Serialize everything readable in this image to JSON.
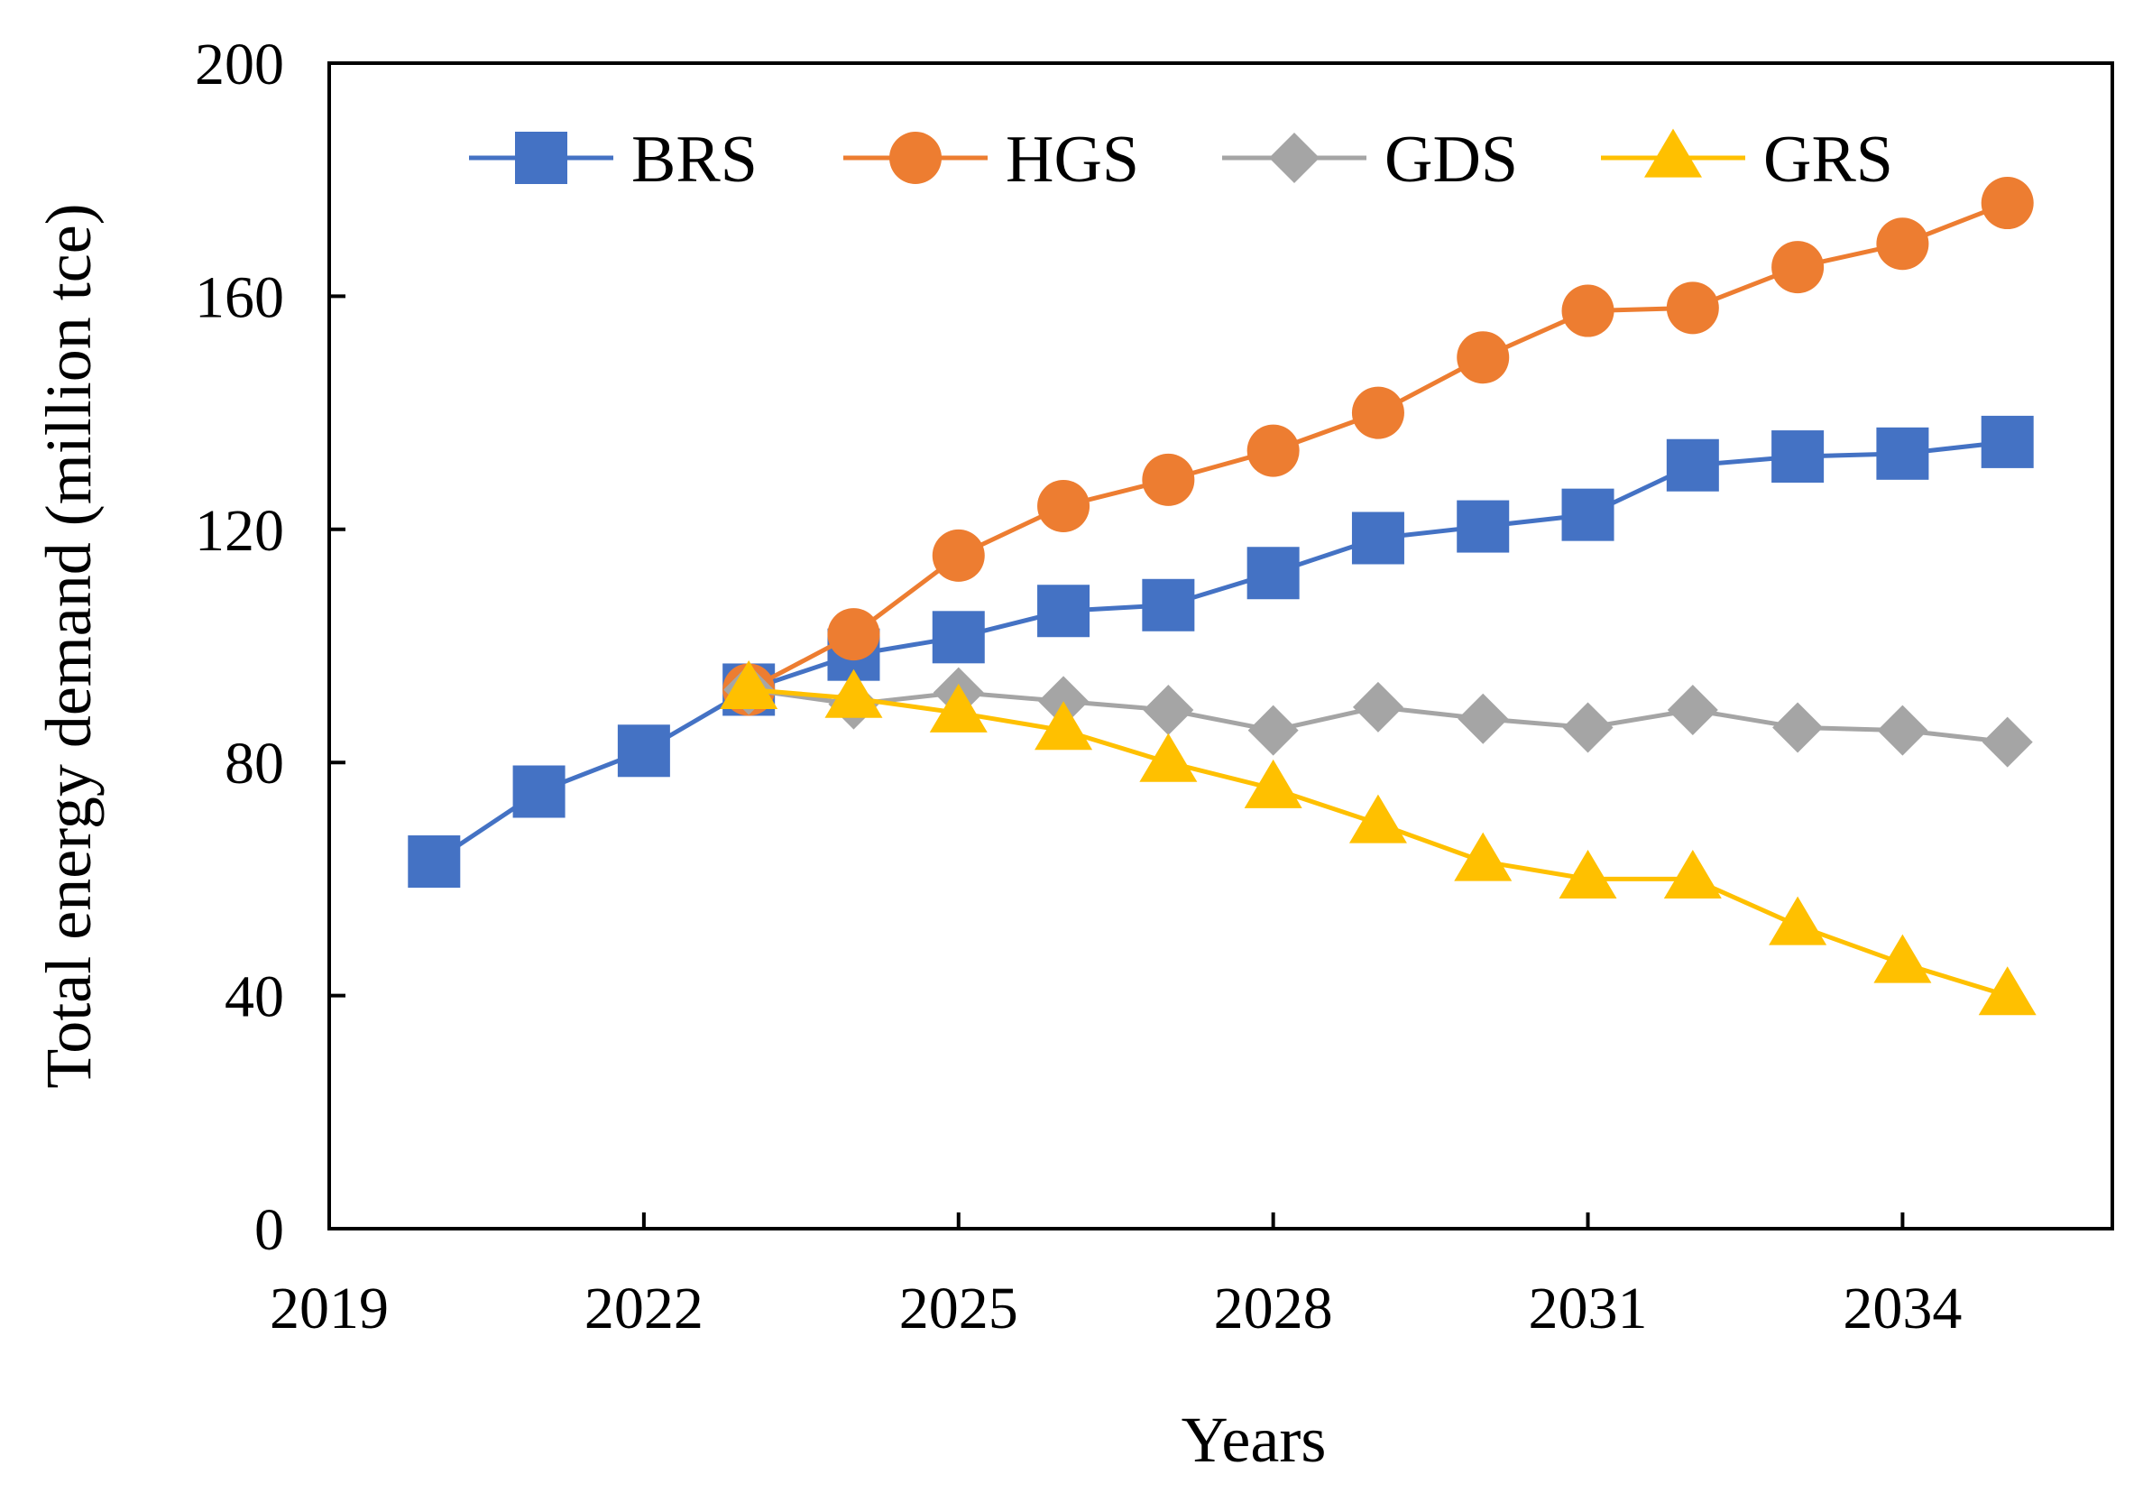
{
  "chart_data": {
    "type": "line",
    "title": "",
    "xlabel": "Years",
    "ylabel": "Total energy demand (million tce)",
    "xlim": [
      2019,
      2036
    ],
    "ylim": [
      0,
      200
    ],
    "x_ticks": [
      2019,
      2022,
      2025,
      2028,
      2031,
      2034
    ],
    "y_ticks": [
      0,
      40,
      80,
      120,
      160,
      200
    ],
    "x_tick_labels": [
      "2019",
      "2022",
      "2025",
      "2028",
      "2031",
      "2034"
    ],
    "y_tick_labels": [
      "0",
      "40",
      "80",
      "120",
      "160",
      "200"
    ],
    "grid": false,
    "legend_position": "top",
    "series": [
      {
        "name": "BRS",
        "color": "#4472C4",
        "marker": "square",
        "x": [
          2020,
          2021,
          2022,
          2023,
          2024,
          2025,
          2026,
          2027,
          2028,
          2029,
          2030,
          2031,
          2032,
          2033,
          2034,
          2035
        ],
        "values": [
          63,
          75,
          82,
          92.5,
          98.5,
          101.5,
          106,
          107,
          112.5,
          118.5,
          120.5,
          122.5,
          131,
          132.5,
          133,
          135
        ]
      },
      {
        "name": "HGS",
        "color": "#ED7D31",
        "marker": "circle",
        "x": [
          2023,
          2024,
          2025,
          2026,
          2027,
          2028,
          2029,
          2030,
          2031,
          2032,
          2033,
          2034,
          2035
        ],
        "values": [
          92.5,
          102,
          115.5,
          124,
          128.5,
          133.5,
          140,
          149.5,
          157.5,
          158,
          165,
          169,
          176
        ]
      },
      {
        "name": "GDS",
        "color": "#A5A5A5",
        "marker": "diamond",
        "x": [
          2023,
          2024,
          2025,
          2026,
          2027,
          2028,
          2029,
          2030,
          2031,
          2032,
          2033,
          2034,
          2035
        ],
        "values": [
          92.5,
          90,
          92,
          90.5,
          89,
          85.5,
          89.5,
          87.5,
          86,
          89,
          86,
          85.5,
          83.5
        ]
      },
      {
        "name": "GRS",
        "color": "#FFC000",
        "marker": "triangle",
        "x": [
          2023,
          2024,
          2025,
          2026,
          2027,
          2028,
          2029,
          2030,
          2031,
          2032,
          2033,
          2034,
          2035
        ],
        "values": [
          92.5,
          91,
          88.5,
          85.5,
          80,
          75.5,
          69.5,
          63,
          60,
          60,
          52,
          45.5,
          40
        ]
      }
    ]
  }
}
